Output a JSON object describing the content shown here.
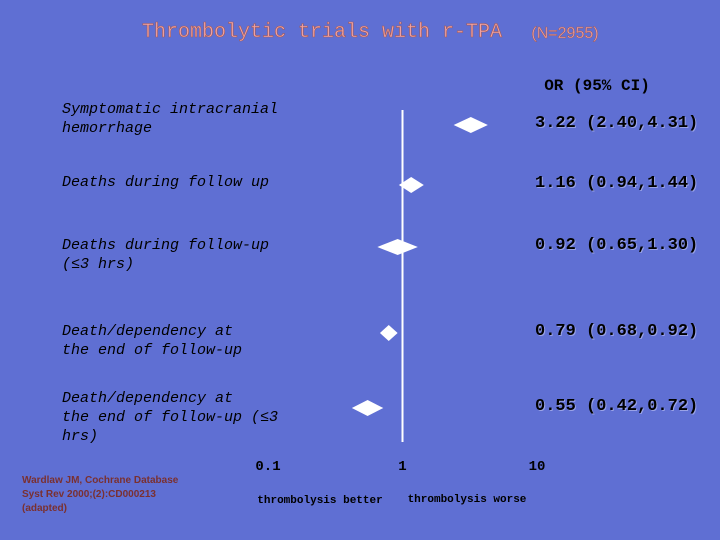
{
  "chart_data": {
    "type": "forest",
    "title": "Thrombolytic trials with r-TPA",
    "subtitle": "(N=2955)",
    "column_header": "OR (95% CI)",
    "categories": [
      "Symptomatic intracranial\nhemorrhage",
      "Deaths during follow up",
      "Deaths during follow-up\n(≤3 hrs)",
      "Death/dependency at\nthe  end of follow-up",
      "Death/dependency at\nthe end of follow-up (≤3\nhrs)"
    ],
    "values": [
      3.22,
      1.16,
      0.92,
      0.79,
      0.55
    ],
    "ci_low": [
      2.4,
      0.94,
      0.65,
      0.68,
      0.42
    ],
    "ci_high": [
      4.31,
      1.44,
      1.3,
      0.92,
      0.72
    ],
    "value_labels": [
      "3.22 (2.40,4.31)",
      "1.16 (0.94,1.44)",
      "0.92 (0.65,1.30)",
      "0.79 (0.68,0.92)",
      "0.55 (0.42,0.72)"
    ],
    "color": "#ffffff",
    "log_x": true,
    "xlim": [
      0.1,
      10
    ],
    "xticks": [
      0.1,
      1,
      10
    ],
    "xlabel_left": "thrombolysis better",
    "xlabel_right": "thrombolysis worse",
    "source": "Wardlaw JM, Cochrane Database\nSyst Rev 2000;(2):CD000213\n(adapted)"
  }
}
